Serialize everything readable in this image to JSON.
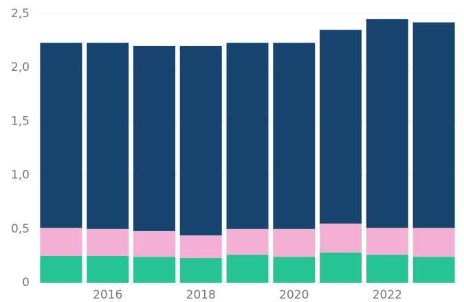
{
  "chart_data": {
    "type": "stacked_bar",
    "categories": [
      null,
      "2016",
      null,
      "2018",
      null,
      "2020",
      null,
      "2022",
      null
    ],
    "series": [
      {
        "color": "#26c495",
        "values": [
          0.25,
          0.25,
          0.24,
          0.23,
          0.26,
          0.24,
          0.28,
          0.26,
          0.24
        ]
      },
      {
        "color": "#f4b0d4",
        "values": [
          0.26,
          0.25,
          0.24,
          0.21,
          0.24,
          0.26,
          0.27,
          0.25,
          0.27
        ]
      },
      {
        "color": "#17446f",
        "values": [
          1.72,
          1.73,
          1.72,
          1.76,
          1.73,
          1.73,
          1.8,
          1.94,
          1.91
        ]
      }
    ],
    "ylim": [
      0,
      2.5
    ],
    "yticks": [
      0,
      {
        "value": 0.5,
        "label": "0,5"
      },
      {
        "value": 1,
        "label": "1,0"
      },
      {
        "value": 1.5,
        "label": "1,5"
      },
      {
        "value": 2,
        "label": "2,0"
      },
      {
        "value": 2.5,
        "label": "2,5"
      }
    ],
    "grid": true
  }
}
